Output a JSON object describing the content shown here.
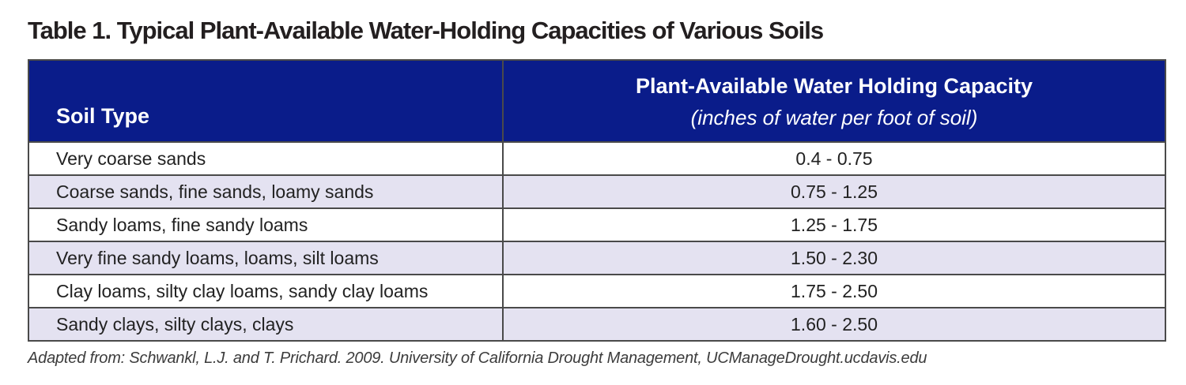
{
  "title": "Table 1. Typical Plant-Available Water-Holding Capacities of Various Soils",
  "table": {
    "columns": {
      "soil_type_label": "Soil Type",
      "capacity_label": "Plant-Available Water Holding Capacity",
      "capacity_sublabel": "(inches of water per foot of soil)"
    },
    "rows": [
      {
        "soil_type": "Very coarse sands",
        "capacity": "0.4 - 0.75"
      },
      {
        "soil_type": "Coarse sands, fine sands, loamy sands",
        "capacity": "0.75 - 1.25"
      },
      {
        "soil_type": "Sandy loams, fine sandy loams",
        "capacity": "1.25 - 1.75"
      },
      {
        "soil_type": "Very fine sandy loams, loams, silt loams",
        "capacity": "1.50 - 2.30"
      },
      {
        "soil_type": "Clay loams, silty clay loams, sandy clay loams",
        "capacity": "1.75 - 2.50"
      },
      {
        "soil_type": "Sandy clays, silty clays, clays",
        "capacity": "1.60 - 2.50"
      }
    ]
  },
  "footer_citation": "Adapted from: Schwankl, L.J. and T. Prichard. 2009. University of California Drought Management, UCManageDrought.ucdavis.edu",
  "colors": {
    "header_bg": "#0a1c8a",
    "header_text": "#ffffff",
    "row_alt_bg": "#e4e2f1",
    "border": "#4a4a4a",
    "title_text": "#231f20",
    "body_text": "#222222",
    "citation_text": "#3c3c3c"
  }
}
